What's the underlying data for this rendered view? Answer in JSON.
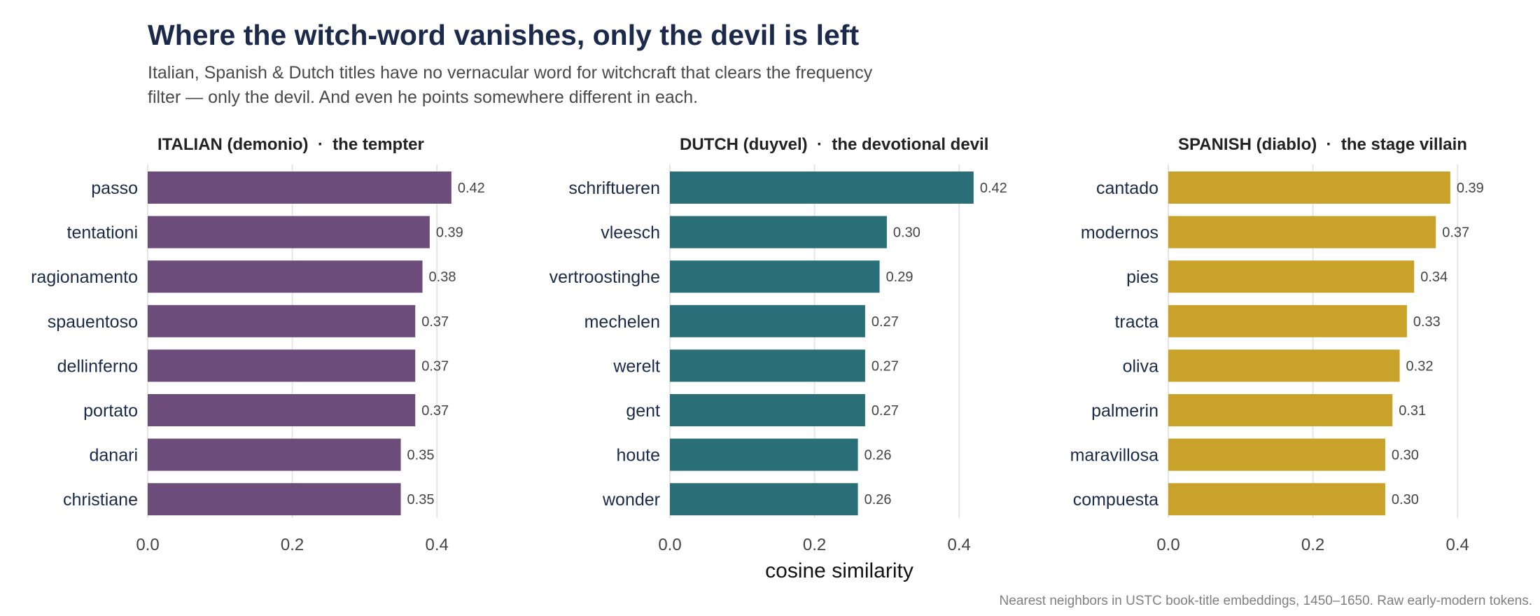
{
  "title": "Where the witch-word vanishes, only the devil is left",
  "subtitle_lines": [
    "Italian, Spanish & Dutch titles have no vernacular word for witchcraft that clears the frequency",
    "filter — only the devil. And even he points somewhere different in each."
  ],
  "xlabel": "cosine similarity",
  "caption": "Nearest neighbors in USTC book-title embeddings, 1450–1650. Raw early-modern tokens.",
  "chart_data": [
    {
      "type": "bar",
      "orientation": "horizontal",
      "title": "ITALIAN (demonio)  ·  the tempter",
      "color": "#6b4c7b",
      "categories": [
        "passo",
        "tentationi",
        "ragionamento",
        "spauentoso",
        "dellinferno",
        "portato",
        "danari",
        "christiane"
      ],
      "values": [
        0.42,
        0.39,
        0.38,
        0.37,
        0.37,
        0.37,
        0.35,
        0.35
      ],
      "value_labels": [
        "0.42",
        "0.39",
        "0.38",
        "0.37",
        "0.37",
        "0.37",
        "0.35",
        "0.35"
      ],
      "xlim": [
        0,
        0.45
      ],
      "xticks": [
        0.0,
        0.2,
        0.4
      ],
      "xtick_labels": [
        "0.0",
        "0.2",
        "0.4"
      ],
      "grid": true
    },
    {
      "type": "bar",
      "orientation": "horizontal",
      "title": "DUTCH (duyvel)  ·  the devotional devil",
      "color": "#2a6f77",
      "categories": [
        "schriftueren",
        "vleesch",
        "vertroostinghe",
        "mechelen",
        "werelt",
        "gent",
        "houte",
        "wonder"
      ],
      "values": [
        0.42,
        0.3,
        0.29,
        0.27,
        0.27,
        0.27,
        0.26,
        0.26
      ],
      "value_labels": [
        "0.42",
        "0.30",
        "0.29",
        "0.27",
        "0.27",
        "0.27",
        "0.26",
        "0.26"
      ],
      "xlim": [
        0,
        0.45
      ],
      "xticks": [
        0.0,
        0.2,
        0.4
      ],
      "xtick_labels": [
        "0.0",
        "0.2",
        "0.4"
      ],
      "grid": true
    },
    {
      "type": "bar",
      "orientation": "horizontal",
      "title": "SPANISH (diablo)  ·  the stage villain",
      "color": "#c9a22a",
      "categories": [
        "cantado",
        "modernos",
        "pies",
        "tracta",
        "oliva",
        "palmerin",
        "maravillosa",
        "compuesta"
      ],
      "values": [
        0.39,
        0.37,
        0.34,
        0.33,
        0.32,
        0.31,
        0.3,
        0.3
      ],
      "value_labels": [
        "0.39",
        "0.37",
        "0.34",
        "0.33",
        "0.32",
        "0.31",
        "0.30",
        "0.30"
      ],
      "xlim": [
        0,
        0.45
      ],
      "xticks": [
        0.0,
        0.2,
        0.4
      ],
      "xtick_labels": [
        "0.0",
        "0.2",
        "0.4"
      ],
      "grid": true
    }
  ]
}
